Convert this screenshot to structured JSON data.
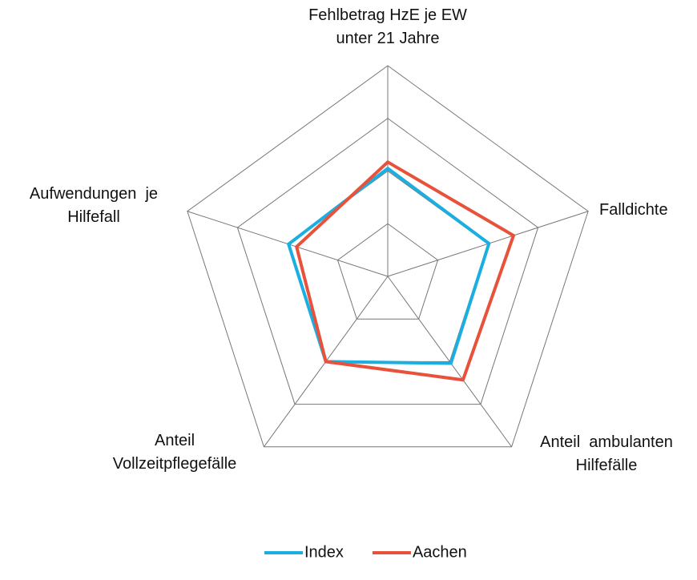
{
  "chart_data": {
    "type": "radar",
    "categories": [
      "Fehlbetrag HzE je EW\nunter 21 Jahre",
      "Falldichte",
      "Anteil  ambulanten\nHilfefälle",
      "Anteil\nVollzeitpflegefälle",
      "Aufwendungen  je\nHilfefall"
    ],
    "series": [
      {
        "name": "Index",
        "color": "#1aafe0",
        "values": [
          2.05,
          2.02,
          2.04,
          2.0,
          1.98
        ]
      },
      {
        "name": "Aachen",
        "color": "#e8523a",
        "values": [
          2.17,
          2.51,
          2.43,
          2.0,
          1.82
        ]
      }
    ],
    "ylim": [
      0,
      4
    ],
    "yticks": [
      1,
      2,
      3,
      4
    ],
    "grid": true,
    "legend": "bottom"
  }
}
